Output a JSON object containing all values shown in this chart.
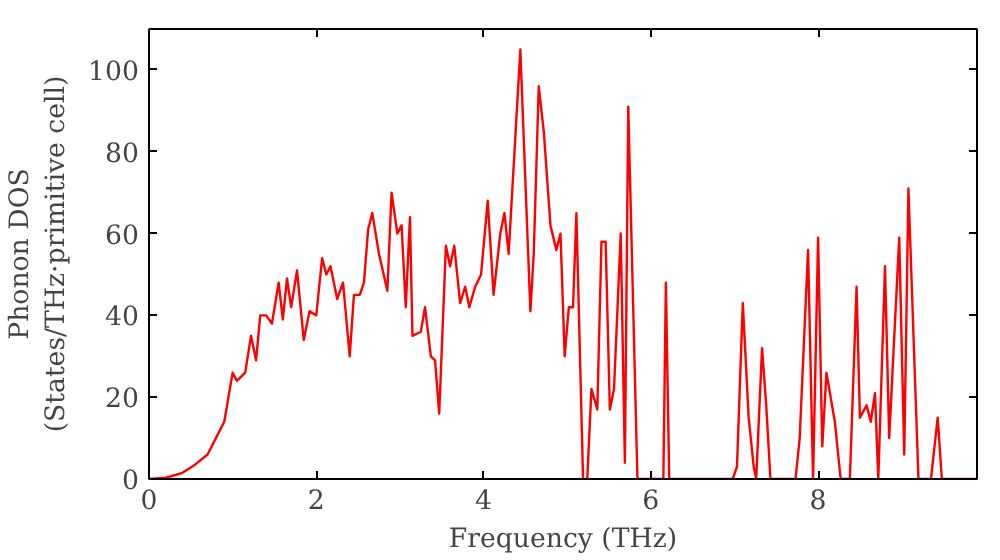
{
  "chart_data": {
    "type": "line",
    "xlabel": "Frequency (THz)",
    "ylabel": "Phonon DOS\n(States/THz·primitive cell)",
    "xlim": [
      0,
      9.9
    ],
    "ylim": [
      0,
      110
    ],
    "xticks": [
      0,
      2,
      4,
      6,
      8
    ],
    "yticks": [
      0,
      20,
      40,
      60,
      80,
      100
    ],
    "grid": false,
    "marker": "none",
    "line_style": "solid",
    "series": [
      {
        "color": "#ff0000",
        "x": [
          0,
          0.2,
          0.4,
          0.55,
          0.7,
          0.8,
          0.9,
          1.0,
          1.05,
          1.15,
          1.22,
          1.28,
          1.33,
          1.4,
          1.47,
          1.55,
          1.6,
          1.65,
          1.7,
          1.77,
          1.85,
          1.92,
          2.0,
          2.07,
          2.12,
          2.17,
          2.25,
          2.32,
          2.4,
          2.45,
          2.52,
          2.57,
          2.62,
          2.67,
          2.75,
          2.85,
          2.9,
          2.97,
          3.02,
          3.07,
          3.12,
          3.15,
          3.25,
          3.3,
          3.37,
          3.42,
          3.47,
          3.55,
          3.6,
          3.65,
          3.72,
          3.78,
          3.83,
          3.9,
          3.97,
          4.05,
          4.12,
          4.2,
          4.25,
          4.3,
          4.44,
          4.56,
          4.6,
          4.66,
          4.72,
          4.8,
          4.87,
          4.92,
          4.97,
          5.02,
          5.07,
          5.11,
          5.19,
          5.24,
          5.29,
          5.36,
          5.41,
          5.46,
          5.51,
          5.56,
          5.64,
          5.69,
          5.73,
          5.84,
          6.15,
          6.18,
          6.22,
          6.98,
          7.03,
          7.1,
          7.17,
          7.23,
          7.26,
          7.33,
          7.38,
          7.43,
          7.73,
          7.78,
          7.88,
          7.94,
          8.0,
          8.05,
          8.1,
          8.2,
          8.27,
          8.38,
          8.46,
          8.5,
          8.58,
          8.63,
          8.68,
          8.72,
          8.8,
          8.85,
          8.97,
          9.03,
          9.08,
          9.2,
          9.35,
          9.43,
          9.48,
          9.9
        ],
        "values": [
          0,
          0.3,
          1.5,
          3.5,
          6,
          10,
          14,
          26,
          24,
          26,
          35,
          29,
          40,
          40,
          38,
          48,
          39,
          49,
          42,
          51,
          34,
          41,
          40,
          54,
          50,
          52,
          44,
          48,
          30,
          45,
          45,
          48,
          61,
          65,
          55,
          46,
          70,
          60,
          62,
          42,
          64,
          35,
          36,
          42,
          30,
          29,
          16,
          57,
          52,
          57,
          43,
          47,
          42,
          47,
          50,
          68,
          45,
          60,
          65,
          55,
          105,
          41,
          55,
          96,
          85,
          62,
          56,
          60,
          30,
          42,
          42,
          65,
          0,
          0,
          22,
          17,
          58,
          58,
          17,
          22,
          60,
          4,
          91,
          0,
          0,
          48,
          0,
          0,
          3,
          43,
          15,
          3,
          0,
          32,
          18,
          0,
          0,
          10,
          56,
          0,
          59,
          8,
          26,
          14,
          0,
          0,
          47,
          15,
          18,
          14,
          21,
          0,
          52,
          10,
          59,
          6,
          71,
          0,
          0,
          15,
          0,
          0
        ]
      }
    ]
  }
}
